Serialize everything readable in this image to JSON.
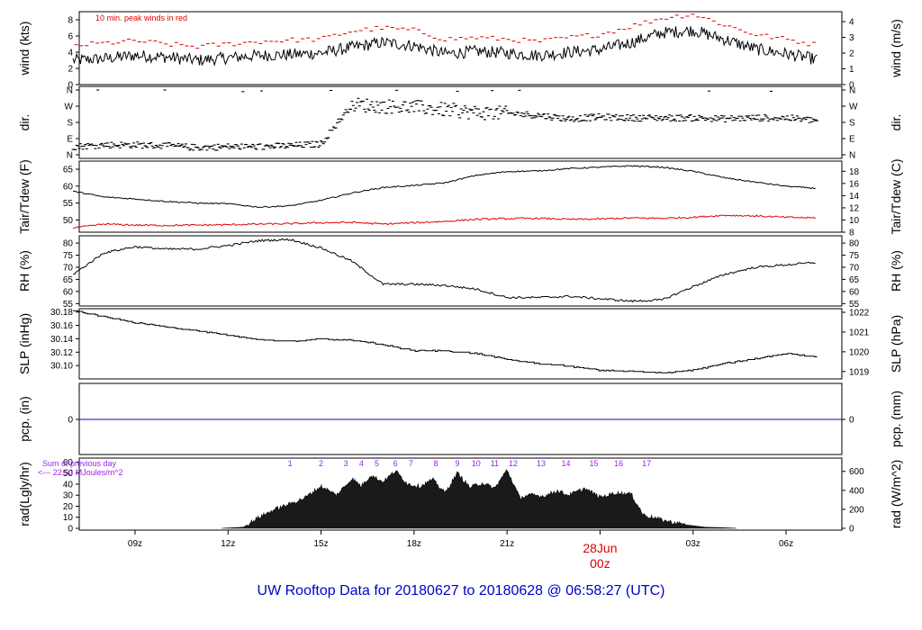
{
  "title": "UW Rooftop Data for 20180627  to  20180628 @ 06:58:27  (UTC)",
  "date_marker": {
    "date": "28Jun",
    "hour": "00z"
  },
  "x_ticks": [
    "09z",
    "12z",
    "15z",
    "18z",
    "21z",
    "00z",
    "03z",
    "06z"
  ],
  "colors": {
    "trace": "#000000",
    "peak": "#e00000",
    "dew": "#e00000",
    "precip": "#0000cc",
    "annotation": "#a020f0",
    "title": "#0000cc"
  },
  "chart_data": [
    {
      "type": "line",
      "title": "",
      "ylabel": "wind (kts)",
      "y2label": "wind (m/s)",
      "ylim": [
        0,
        9
      ],
      "yticks": [
        0,
        2,
        4,
        6,
        8
      ],
      "y2ticks": [
        0,
        1,
        2,
        3,
        4
      ],
      "annotation": "10 min. peak winds in red",
      "x_hours": [
        7,
        8,
        9,
        10,
        11,
        12,
        13,
        14,
        15,
        16,
        17,
        18,
        19,
        20,
        21,
        22,
        23,
        24,
        25,
        26,
        27,
        28,
        29,
        30,
        31
      ],
      "series": [
        {
          "values": [
            3.0,
            3.2,
            3.6,
            3.4,
            3.0,
            3.3,
            3.6,
            3.7,
            3.9,
            4.6,
            5.2,
            4.8,
            3.8,
            4.1,
            3.9,
            3.6,
            4.0,
            4.3,
            5.2,
            6.4,
            6.7,
            5.6,
            4.4,
            3.8,
            3.1
          ]
        },
        {
          "values": [
            4.8,
            5.1,
            5.4,
            5.0,
            4.7,
            5.0,
            5.3,
            5.5,
            5.6,
            6.6,
            7.0,
            6.7,
            5.6,
            5.8,
            5.6,
            5.3,
            5.8,
            6.2,
            7.2,
            8.2,
            8.7,
            7.4,
            6.2,
            5.6,
            4.9
          ]
        }
      ]
    },
    {
      "type": "scatter",
      "title": "",
      "ylabel": "dir.",
      "y2label": "dir.",
      "yticks": [
        "N",
        "E",
        "S",
        "W",
        "N"
      ],
      "y2ticks": [
        "N",
        "E",
        "S",
        "W",
        "N"
      ],
      "x_hours": [
        7,
        8,
        9,
        10,
        11,
        12,
        13,
        14,
        15,
        16,
        17,
        18,
        19,
        20,
        21,
        22,
        23,
        24,
        25,
        26,
        27,
        28,
        29,
        30,
        31
      ],
      "values_deg": [
        45,
        55,
        55,
        50,
        40,
        45,
        45,
        50,
        60,
        280,
        270,
        265,
        250,
        235,
        230,
        220,
        200,
        210,
        205,
        205,
        205,
        200,
        205,
        205,
        190
      ]
    },
    {
      "type": "line",
      "title": "",
      "ylabel": "Tair/Tdew (F)",
      "y2label": "Tair/Tdew (C)",
      "ylim": [
        46.4,
        67.4
      ],
      "yticks": [
        50,
        55,
        60,
        65
      ],
      "y2ticks": [
        8,
        10,
        12,
        14,
        16,
        18
      ],
      "x_hours": [
        7,
        8,
        9,
        10,
        11,
        12,
        13,
        14,
        15,
        16,
        17,
        18,
        19,
        20,
        21,
        22,
        23,
        24,
        25,
        26,
        27,
        28,
        29,
        30,
        31
      ],
      "series": [
        {
          "values": [
            58.5,
            56.8,
            56.2,
            55.5,
            55.0,
            54.8,
            53.8,
            54.2,
            55.8,
            58.0,
            59.6,
            60.2,
            61.0,
            63.2,
            64.3,
            64.5,
            65.2,
            65.6,
            66.0,
            65.6,
            64.4,
            62.5,
            61.2,
            60.0,
            59.3
          ]
        },
        {
          "values": [
            47.6,
            48.8,
            48.5,
            48.4,
            48.5,
            48.6,
            48.8,
            48.9,
            49.2,
            49.3,
            48.8,
            49.2,
            49.6,
            50.2,
            50.4,
            50.5,
            50.2,
            50.3,
            50.6,
            50.5,
            50.8,
            51.4,
            51.2,
            50.8,
            50.6
          ]
        }
      ]
    },
    {
      "type": "line",
      "title": "",
      "ylabel": "RH (%)",
      "y2label": "RH (%)",
      "ylim": [
        54,
        83
      ],
      "yticks": [
        55,
        60,
        65,
        70,
        75,
        80
      ],
      "y2ticks": [
        55,
        60,
        65,
        70,
        75,
        80
      ],
      "x_hours": [
        7,
        8,
        9,
        10,
        11,
        12,
        13,
        14,
        15,
        16,
        17,
        18,
        19,
        20,
        21,
        22,
        23,
        24,
        25,
        26,
        27,
        28,
        29,
        30,
        31
      ],
      "series": [
        {
          "values": [
            67.0,
            76.0,
            78.5,
            77.5,
            77.5,
            79.0,
            81.0,
            81.5,
            78.0,
            72.5,
            63.0,
            63.0,
            62.5,
            61.0,
            57.5,
            57.5,
            58.0,
            57.0,
            56.0,
            56.5,
            62.0,
            67.0,
            70.0,
            71.0,
            72.0
          ]
        }
      ]
    },
    {
      "type": "line",
      "title": "",
      "ylabel": "SLP (inHg)",
      "y2label": "SLP (hPa)",
      "ylim": [
        30.08,
        30.185
      ],
      "yticks": [
        "30.10",
        "30.12",
        "30.14",
        "30.16",
        "30.18"
      ],
      "y2ticks": [
        1019,
        1020,
        1021,
        1022
      ],
      "x_hours": [
        7,
        8,
        9,
        10,
        11,
        12,
        13,
        14,
        15,
        16,
        17,
        18,
        19,
        20,
        21,
        22,
        23,
        24,
        25,
        26,
        27,
        28,
        29,
        30,
        31
      ],
      "series": [
        {
          "values": [
            30.182,
            30.173,
            30.164,
            30.158,
            30.152,
            30.145,
            30.139,
            30.136,
            30.14,
            30.138,
            30.131,
            30.122,
            30.122,
            30.118,
            30.109,
            30.103,
            30.099,
            30.093,
            30.091,
            30.089,
            30.093,
            30.103,
            30.11,
            30.118,
            30.113
          ]
        }
      ]
    },
    {
      "type": "line",
      "title": "",
      "ylabel": "pcp. (in)",
      "y2label": "pcp. (mm)",
      "yticks": [
        0
      ],
      "y2ticks": [
        0
      ],
      "x_hours": [
        7,
        31
      ],
      "series": [
        {
          "values": [
            0,
            0
          ]
        }
      ]
    },
    {
      "type": "area",
      "title": "",
      "ylabel": "rad(Lgly/hr)",
      "y2label": "rad (W/m^2)",
      "ylim": [
        0,
        62
      ],
      "yticks": [
        0,
        10,
        20,
        30,
        40,
        50,
        60
      ],
      "y2ticks": [
        0,
        200,
        400,
        600
      ],
      "annotation": [
        "Sum of previous day",
        "<--- 22.53 MJoules/m^2"
      ],
      "hour_labels": [
        "1",
        "2",
        "3",
        "4",
        "5",
        "6",
        "7",
        "8",
        "9",
        "10",
        "11",
        "12",
        "13",
        "14",
        "15",
        "16",
        "17"
      ],
      "x_hours": [
        11.8,
        12.5,
        13.0,
        13.5,
        14.0,
        14.5,
        15.0,
        15.5,
        16.0,
        16.3,
        16.6,
        17.0,
        17.4,
        17.8,
        18.2,
        18.6,
        19.0,
        19.4,
        19.8,
        20.2,
        20.6,
        21.0,
        21.4,
        21.8,
        22.2,
        22.6,
        23.0,
        23.5,
        24.0,
        24.5,
        25.0,
        25.4,
        25.8,
        26.2,
        26.8,
        27.4,
        28.0,
        28.4
      ],
      "values": [
        0,
        1,
        10,
        17,
        22,
        28,
        38,
        30,
        45,
        38,
        48,
        42,
        52,
        40,
        38,
        44,
        32,
        50,
        37,
        41,
        36,
        53,
        28,
        30,
        29,
        34,
        30,
        36,
        28,
        32,
        31,
        12,
        9,
        6,
        3,
        1,
        0.5,
        0
      ]
    }
  ]
}
